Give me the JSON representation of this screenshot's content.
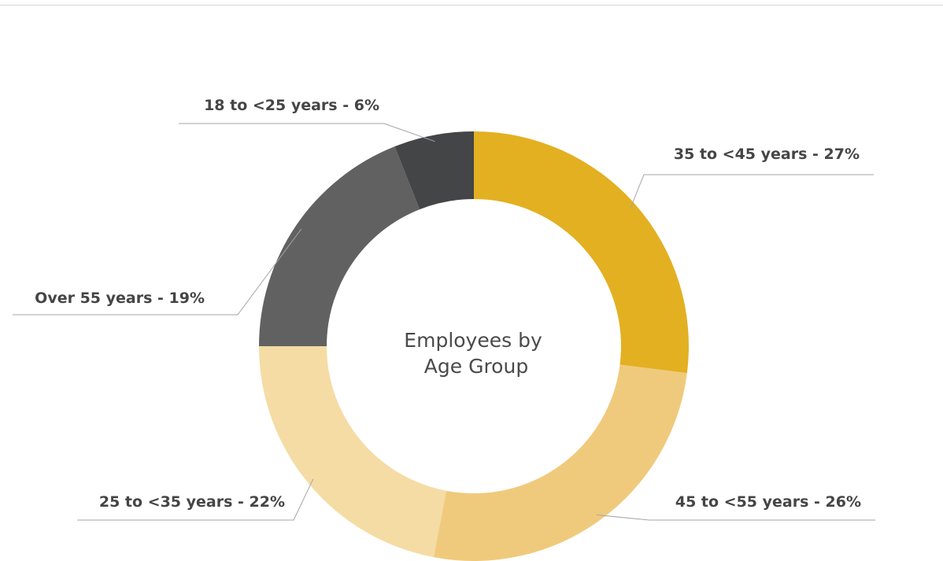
{
  "chart_data": {
    "type": "pie",
    "title": "Employees by Age Group",
    "title_lines": [
      "Employees by",
      "Age Group"
    ],
    "unit": "%",
    "slices": [
      {
        "label": "35 to <45 years - 27%",
        "value": 27,
        "color": "#E3B021"
      },
      {
        "label": "45 to <55 years - 26%",
        "value": 26,
        "color": "#F0CA7C"
      },
      {
        "label": "25 to  <35 years - 22%",
        "value": 22,
        "color": "#F5DCA5"
      },
      {
        "label": "Over 55 years - 19%",
        "value": 19,
        "color": "#616162"
      },
      {
        "label": "18 to <25 years - 6%",
        "value": 6,
        "color": "#444547"
      }
    ],
    "start_angle_deg": 0,
    "direction": "clockwise",
    "style": "donut",
    "legend": "none"
  }
}
